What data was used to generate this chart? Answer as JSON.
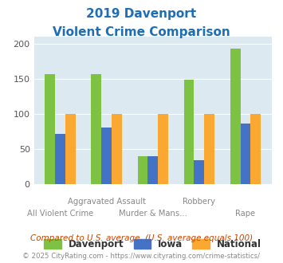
{
  "title_line1": "2019 Davenport",
  "title_line2": "Violent Crime Comparison",
  "categories": [
    "All Violent Crime",
    "Aggravated Assault",
    "Murder & Mans...",
    "Robbery",
    "Rape"
  ],
  "series": {
    "Davenport": [
      157,
      157,
      40,
      149,
      193
    ],
    "Iowa": [
      72,
      81,
      40,
      34,
      86
    ],
    "National": [
      100,
      100,
      100,
      100,
      100
    ]
  },
  "colors": {
    "Davenport": "#7dc242",
    "Iowa": "#4472c4",
    "National": "#faa832"
  },
  "ylim": [
    0,
    210
  ],
  "yticks": [
    0,
    50,
    100,
    150,
    200
  ],
  "background_color": "#dce9f0",
  "title_color": "#1e6eb5",
  "subtitle_note": "Compared to U.S. average. (U.S. average equals 100)",
  "footer": "© 2025 CityRating.com - https://www.cityrating.com/crime-statistics/",
  "subtitle_color": "#cc4400",
  "footer_color": "#888888",
  "bar_width": 0.22
}
